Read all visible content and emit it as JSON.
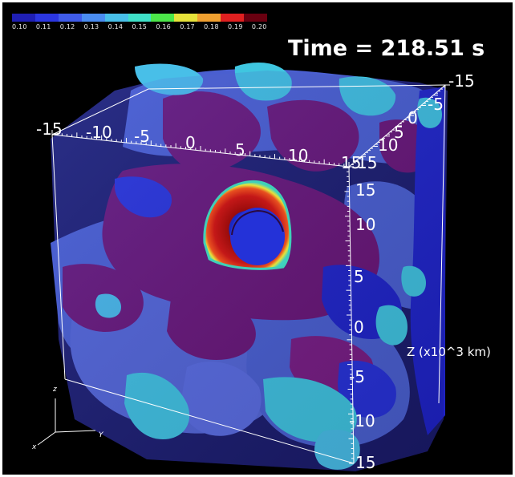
{
  "colorbar": {
    "labels": [
      "0.10",
      "0.11",
      "0.12",
      "0.13",
      "0.14",
      "0.15",
      "0.16",
      "0.17",
      "0.18",
      "0.19",
      "0.20"
    ],
    "colors": [
      "#1f1fb4",
      "#2b36e0",
      "#3f5be8",
      "#4a8cf0",
      "#48bfe8",
      "#3fe0c8",
      "#4ce64a",
      "#e6e23a",
      "#f0a030",
      "#e02020",
      "#6a0010"
    ]
  },
  "time_label": "Time = 218.51 s",
  "axes": {
    "top_x_ticks": [
      "-15",
      "-10",
      "-5",
      "0",
      "5",
      "10",
      "15"
    ],
    "depth_ticks": [
      "-15",
      "-5",
      "0",
      "5",
      "10",
      "15"
    ],
    "z_ticks": [
      "15",
      "10",
      "5",
      "0",
      "-5",
      "-10",
      "15"
    ],
    "z_axis_label": "Z (x10^3 km)",
    "triad": {
      "x": "x",
      "y": "Y",
      "z": "z"
    }
  },
  "colors": {
    "background": "#000000",
    "purple": "#6b1272",
    "slate_blue": "#4a5fd0",
    "deep_blue": "#1e22c8",
    "cyan": "#3fc6e0",
    "core_red": "#b01010"
  }
}
